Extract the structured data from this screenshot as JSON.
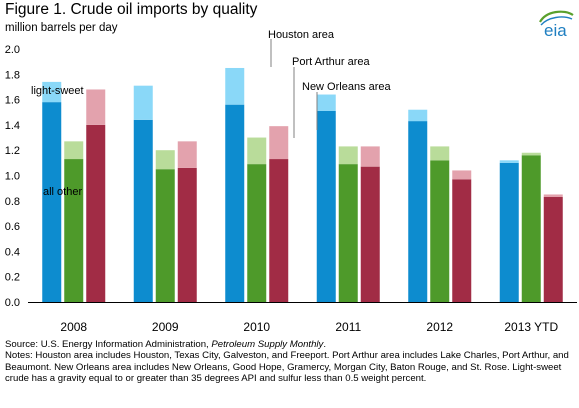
{
  "title": "Figure 1.  Crude oil imports by quality",
  "logo_text": "eia",
  "colors": {
    "houston_all_other": "#0d8ccf",
    "houston_light_sweet": "#8ad8f8",
    "port_arthur_all_other": "#4e9a2a",
    "port_arthur_light_sweet": "#b9dc9a",
    "new_orleans_all_other": "#a12c45",
    "new_orleans_light_sweet": "#e3a2ad",
    "logo_green": "#5aa02c",
    "logo_blue": "#1f7fc1"
  },
  "chart_data": {
    "type": "bar",
    "stacked": true,
    "title": "Figure 1.  Crude oil imports by quality",
    "ylabel": "million barrels per day",
    "ylim": [
      0,
      2.0
    ],
    "yticks": [
      "0.0",
      "0.2",
      "0.4",
      "0.6",
      "0.8",
      "1.0",
      "1.2",
      "1.4",
      "1.6",
      "1.8",
      "2.0"
    ],
    "categories": [
      "2008",
      "2009",
      "2010",
      "2011",
      "2012",
      "2013 YTD"
    ],
    "regions": [
      {
        "name": "Houston area",
        "all_other": [
          1.58,
          1.44,
          1.56,
          1.51,
          1.43,
          1.1
        ],
        "light_sweet": [
          0.16,
          0.27,
          0.29,
          0.13,
          0.09,
          0.02
        ]
      },
      {
        "name": "Port Arthur area",
        "all_other": [
          1.13,
          1.05,
          1.09,
          1.09,
          1.12,
          1.16
        ],
        "light_sweet": [
          0.14,
          0.15,
          0.21,
          0.14,
          0.11,
          0.02
        ]
      },
      {
        "name": "New Orleans area",
        "all_other": [
          1.4,
          1.06,
          1.13,
          1.07,
          0.97,
          0.83
        ],
        "light_sweet": [
          0.28,
          0.21,
          0.26,
          0.16,
          0.07,
          0.02
        ]
      }
    ],
    "annotations": [
      "light-sweet",
      "all other",
      "Houston area",
      "Port Arthur area",
      "New Orleans area"
    ],
    "grid": false
  },
  "footer": {
    "source_prefix": "Source:  U.S. Energy Information Administration, ",
    "source_italic": "Petroleum Supply  Monthly",
    "source_suffix": ".",
    "notes": "Notes:  Houston area includes Houston, Texas City, Galveston, and Freeport. Port Arthur area includes Lake Charles, Port Arthur, and Beaumont.  New Orleans area includes New Orleans, Good Hope, Gramercy, Morgan City, Baton Rouge, and St. Rose. Light-sweet crude has a gravity equal to or greater than 35 degrees API and sulfur less than 0.5 weight percent."
  }
}
